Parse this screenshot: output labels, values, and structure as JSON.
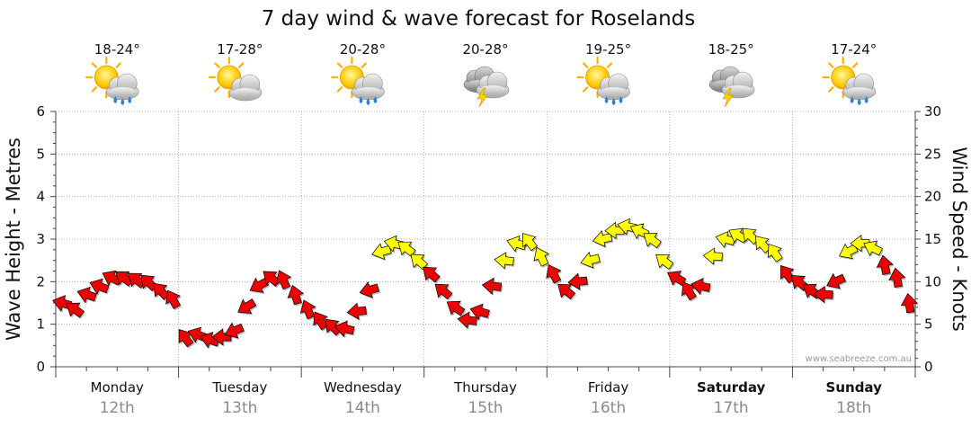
{
  "chart_data": {
    "type": "line",
    "title": "7 day wind & wave forecast for Roselands",
    "ylabel_left": "Wave Height - Metres",
    "ylabel_right": "Wind Speed - Knots",
    "ylim_left": [
      0,
      6
    ],
    "ylim_right": [
      0,
      30
    ],
    "yticks_left": [
      "0",
      "1",
      "2",
      "3",
      "4",
      "5",
      "6"
    ],
    "yticks_right": [
      "0",
      "5",
      "10",
      "15",
      "20",
      "25",
      "30"
    ],
    "grid": true,
    "watermark": "www.seabreeze.com.au",
    "days": [
      {
        "name": "Monday",
        "date": "12th",
        "temp": "18-24°",
        "icon": "sun-cloud-rain-icon",
        "bold": false
      },
      {
        "name": "Tuesday",
        "date": "13th",
        "temp": "17-28°",
        "icon": "sun-cloud-icon",
        "bold": false
      },
      {
        "name": "Wednesday",
        "date": "14th",
        "temp": "20-28°",
        "icon": "sun-cloud-rain-icon",
        "bold": false
      },
      {
        "name": "Thursday",
        "date": "15th",
        "temp": "20-28°",
        "icon": "storm-icon",
        "bold": false
      },
      {
        "name": "Friday",
        "date": "16th",
        "temp": "19-25°",
        "icon": "sun-cloud-rain-icon",
        "bold": false
      },
      {
        "name": "Saturday",
        "date": "17th",
        "temp": "18-25°",
        "icon": "storm-icon",
        "bold": true
      },
      {
        "name": "Sunday",
        "date": "18th",
        "temp": "17-24°",
        "icon": "sun-cloud-rain-icon",
        "bold": true
      }
    ],
    "series": [
      {
        "name": "Wind Speed",
        "unit": "knots",
        "axis": "right",
        "style": "wind-arrows",
        "x": [
          0.05,
          0.15,
          0.25,
          0.35,
          0.45,
          0.55,
          0.65,
          0.75,
          0.85,
          0.95,
          1.05,
          1.15,
          1.25,
          1.35,
          1.45,
          1.55,
          1.65,
          1.75,
          1.85,
          1.95,
          2.05,
          2.15,
          2.25,
          2.35,
          2.45,
          2.55,
          2.65,
          2.75,
          2.85,
          2.95,
          3.05,
          3.15,
          3.25,
          3.35,
          3.45,
          3.55,
          3.65,
          3.75,
          3.85,
          3.95,
          4.05,
          4.15,
          4.25,
          4.35,
          4.45,
          4.55,
          4.65,
          4.75,
          4.85,
          4.95,
          5.05,
          5.15,
          5.25,
          5.35,
          5.45,
          5.55,
          5.65,
          5.75,
          5.85,
          5.95,
          6.05,
          6.15,
          6.25,
          6.35,
          6.45,
          6.55,
          6.65,
          6.75,
          6.85,
          6.95
        ],
        "values": [
          7.5,
          6.8,
          8.5,
          9.5,
          10.5,
          10.5,
          10.3,
          10.0,
          9.0,
          8.0,
          3.5,
          3.8,
          3.2,
          3.5,
          4.2,
          7.0,
          9.5,
          10.5,
          10.3,
          8.5,
          6.8,
          5.5,
          4.8,
          4.5,
          6.5,
          9.0,
          13.5,
          14.5,
          14.0,
          12.5,
          11.0,
          9.0,
          7.0,
          5.5,
          6.5,
          9.5,
          12.5,
          14.5,
          14.8,
          13.0,
          11.0,
          9.0,
          10.0,
          12.5,
          15.0,
          16.0,
          16.5,
          16.0,
          15.0,
          12.5,
          10.5,
          9.0,
          9.5,
          13.0,
          15.0,
          15.5,
          15.5,
          14.5,
          13.5,
          11.0,
          10.0,
          9.0,
          8.5,
          10.0,
          13.5,
          14.5,
          14.0,
          12.0,
          10.5,
          7.5
        ],
        "strong_color": "#ee0000",
        "moderate_color": "#ffff00",
        "moderate_min_knots": 12.5
      }
    ]
  }
}
